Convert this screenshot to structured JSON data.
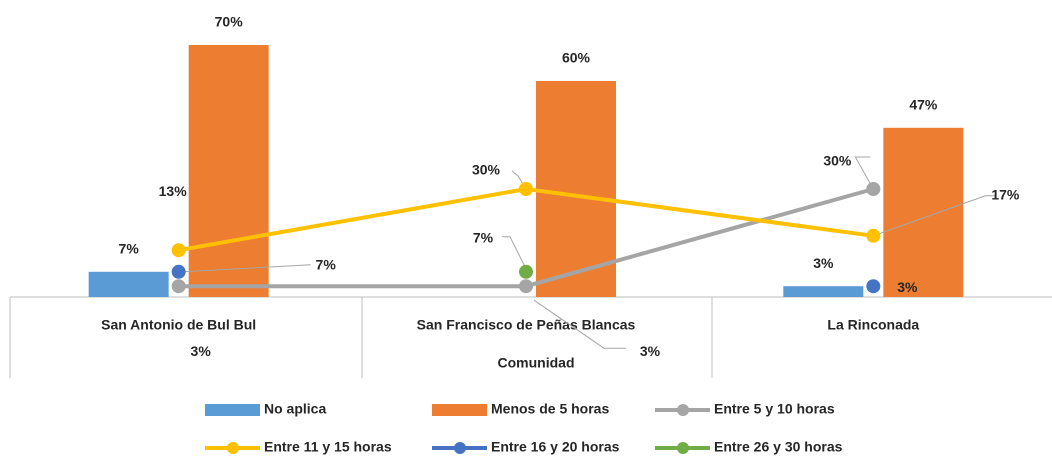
{
  "chart_data": {
    "type": "bar",
    "x_label": "Comunidad",
    "categories": [
      "San Antonio de Bul Bul",
      "San Francisco de Peñas Blancas",
      "La Rinconada"
    ],
    "ylim": [
      0,
      70
    ],
    "series": [
      {
        "name": "No aplica",
        "type": "bar",
        "color": "#5b9bd5",
        "values": [
          7,
          null,
          3
        ],
        "value_labels": [
          "7%",
          null,
          "3%"
        ]
      },
      {
        "name": "Menos de 5 horas",
        "type": "bar",
        "color": "#ed7d31",
        "values": [
          70,
          60,
          47
        ],
        "value_labels": [
          "70%",
          "60%",
          "47%"
        ]
      },
      {
        "name": "Entre 5 y 10 horas",
        "type": "line",
        "color": "#a5a5a5",
        "values": [
          3,
          3,
          30
        ],
        "value_labels": [
          "3%",
          "3%",
          "30%"
        ]
      },
      {
        "name": "Entre 11 y 15 horas",
        "type": "line",
        "color": "#ffc000",
        "values": [
          13,
          30,
          17
        ],
        "value_labels": [
          "13%",
          "30%",
          "17%"
        ]
      },
      {
        "name": "Entre 16 y 20 horas",
        "type": "line",
        "color": "#4472c4",
        "values": [
          7,
          null,
          3
        ],
        "value_labels": [
          "7%",
          null,
          "3%"
        ]
      },
      {
        "name": "Entre 26 y 30 horas",
        "type": "line",
        "color": "#70ad47",
        "values": [
          null,
          7,
          null
        ],
        "value_labels": [
          null,
          "7%",
          null
        ]
      }
    ]
  }
}
